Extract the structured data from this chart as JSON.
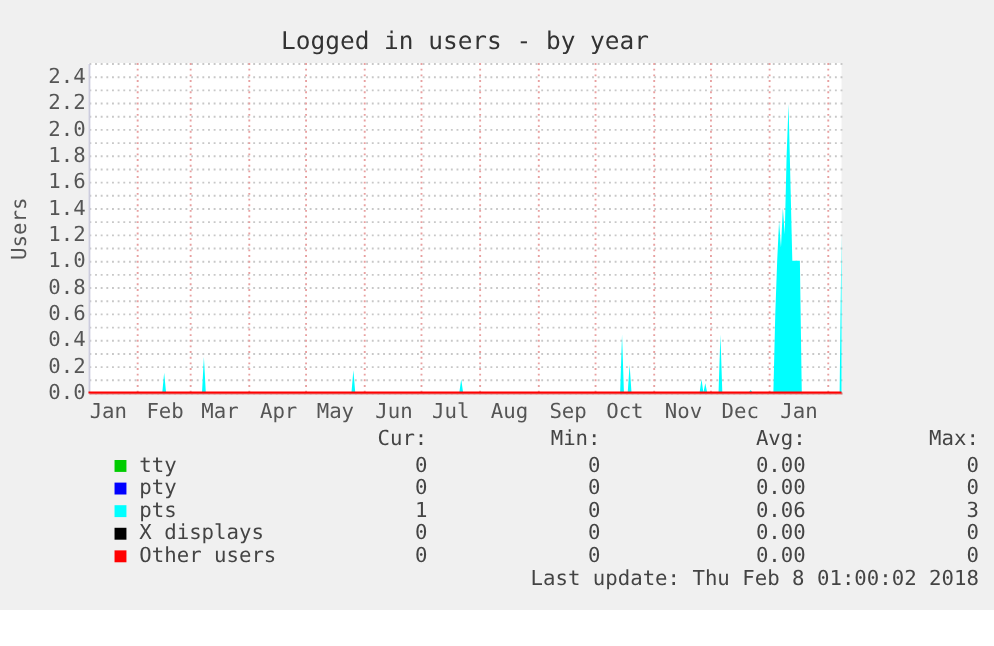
{
  "chart_data": {
    "type": "area",
    "title": "Logged in users - by year",
    "ylabel": "Users",
    "xlim": [
      "2017-01-06",
      "2018-02-08"
    ],
    "ylim": [
      0,
      2.5
    ],
    "xticks": [
      {
        "value": "2017-01-16",
        "label": "Jan"
      },
      {
        "value": "2017-02-15",
        "label": "Feb"
      },
      {
        "value": "2017-03-16",
        "label": "Mar"
      },
      {
        "value": "2017-04-16",
        "label": "Apr"
      },
      {
        "value": "2017-05-16",
        "label": "May"
      },
      {
        "value": "2017-06-16",
        "label": "Jun"
      },
      {
        "value": "2017-07-16",
        "label": "Jul"
      },
      {
        "value": "2017-08-16",
        "label": "Aug"
      },
      {
        "value": "2017-09-16",
        "label": "Sep"
      },
      {
        "value": "2017-10-16",
        "label": "Oct"
      },
      {
        "value": "2017-11-16",
        "label": "Nov"
      },
      {
        "value": "2017-12-16",
        "label": "Dec"
      },
      {
        "value": "2018-01-16",
        "label": "Jan"
      }
    ],
    "yticks": [
      {
        "value": 0,
        "label": "0.0"
      },
      {
        "value": 0.1,
        "label": null
      },
      {
        "value": 0.2,
        "label": "0.2"
      },
      {
        "value": 0.3,
        "label": null
      },
      {
        "value": 0.4,
        "label": "0.4"
      },
      {
        "value": 0.5,
        "label": null
      },
      {
        "value": 0.6,
        "label": "0.6"
      },
      {
        "value": 0.7,
        "label": null
      },
      {
        "value": 0.8,
        "label": "0.8"
      },
      {
        "value": 0.9,
        "label": null
      },
      {
        "value": 1.0,
        "label": "1.0"
      },
      {
        "value": 1.1,
        "label": null
      },
      {
        "value": 1.2,
        "label": "1.2"
      },
      {
        "value": 1.3,
        "label": null
      },
      {
        "value": 1.4,
        "label": "1.4"
      },
      {
        "value": 1.5,
        "label": null
      },
      {
        "value": 1.6,
        "label": "1.6"
      },
      {
        "value": 1.7,
        "label": null
      },
      {
        "value": 1.8,
        "label": "1.8"
      },
      {
        "value": 1.9,
        "label": null
      },
      {
        "value": 2.0,
        "label": "2.0"
      },
      {
        "value": 2.1,
        "label": null
      },
      {
        "value": 2.2,
        "label": "2.2"
      },
      {
        "value": 2.3,
        "label": null
      },
      {
        "value": 2.4,
        "label": "2.4"
      },
      {
        "value": 2.5,
        "label": null
      }
    ],
    "grid": "y",
    "legend": "bottom",
    "ref_lines": [
      {
        "axis": "x",
        "value": "2017-02-01",
        "color": "#e8a0a0",
        "line_style": "dotted"
      },
      {
        "axis": "x",
        "value": "2017-03-01",
        "color": "#e8a0a0",
        "line_style": "dotted"
      },
      {
        "axis": "x",
        "value": "2017-04-01",
        "color": "#e8a0a0",
        "line_style": "dotted"
      },
      {
        "axis": "x",
        "value": "2017-05-01",
        "color": "#e8a0a0",
        "line_style": "dotted"
      },
      {
        "axis": "x",
        "value": "2017-06-01",
        "color": "#e8a0a0",
        "line_style": "dotted"
      },
      {
        "axis": "x",
        "value": "2017-07-01",
        "color": "#e8a0a0",
        "line_style": "dotted"
      },
      {
        "axis": "x",
        "value": "2017-08-01",
        "color": "#e8a0a0",
        "line_style": "dotted"
      },
      {
        "axis": "x",
        "value": "2017-09-01",
        "color": "#e8a0a0",
        "line_style": "dotted"
      },
      {
        "axis": "x",
        "value": "2017-10-01",
        "color": "#e8a0a0",
        "line_style": "dotted"
      },
      {
        "axis": "x",
        "value": "2017-11-01",
        "color": "#e8a0a0",
        "line_style": "dotted"
      },
      {
        "axis": "x",
        "value": "2017-12-01",
        "color": "#e8a0a0",
        "line_style": "dotted"
      },
      {
        "axis": "x",
        "value": "2018-01-01",
        "color": "#e8a0a0",
        "line_style": "dotted"
      },
      {
        "axis": "x",
        "value": "2018-02-01",
        "color": "#e8a0a0",
        "line_style": "dotted"
      }
    ],
    "x": [
      "2017-01-06",
      "2017-02-14",
      "2017-02-15",
      "2017-02-16",
      "2017-03-07",
      "2017-03-08",
      "2017-03-09",
      "2017-05-25",
      "2017-05-26",
      "2017-05-27",
      "2017-07-21",
      "2017-07-22",
      "2017-07-23",
      "2017-10-14",
      "2017-10-15",
      "2017-10-16",
      "2017-10-18",
      "2017-10-19",
      "2017-10-20",
      "2017-11-25",
      "2017-11-26",
      "2017-11-27",
      "2017-11-28",
      "2017-11-29",
      "2017-12-05",
      "2017-12-06",
      "2017-12-07",
      "2017-12-21",
      "2017-12-22",
      "2017-12-23",
      "2018-01-03",
      "2018-01-04",
      "2018-01-05",
      "2018-01-06",
      "2018-01-07",
      "2018-01-08",
      "2018-01-09",
      "2018-01-10",
      "2018-01-11",
      "2018-01-12",
      "2018-01-13",
      "2018-01-14",
      "2018-01-15",
      "2018-01-16",
      "2018-01-17",
      "2018-01-18",
      "2018-02-06",
      "2018-02-07",
      "2018-02-08"
    ],
    "series": [
      {
        "name": "tty",
        "color": "#00cc00",
        "type": "line",
        "values": [
          null,
          null,
          null,
          null,
          null,
          null,
          null,
          null,
          null,
          null,
          null,
          null,
          null,
          null,
          null,
          null,
          null,
          null,
          null,
          null,
          null,
          null,
          null,
          null,
          null,
          null,
          null,
          null,
          null,
          null,
          null,
          null,
          null,
          null,
          null,
          null,
          null,
          null,
          null,
          null,
          null,
          null,
          null,
          null,
          null,
          null,
          null,
          null,
          null
        ]
      },
      {
        "name": "pty",
        "color": "#0000ff",
        "type": "line",
        "values": [
          null,
          null,
          null,
          null,
          null,
          null,
          null,
          null,
          null,
          null,
          null,
          null,
          null,
          null,
          null,
          null,
          null,
          null,
          null,
          null,
          null,
          null,
          null,
          null,
          null,
          null,
          null,
          null,
          null,
          null,
          null,
          null,
          null,
          null,
          null,
          null,
          null,
          null,
          null,
          null,
          null,
          null,
          null,
          null,
          null,
          null,
          null,
          null,
          null
        ]
      },
      {
        "name": "pts",
        "color": "#00ffff",
        "values": [
          0,
          0,
          0.15,
          0,
          0,
          0.27,
          0,
          0,
          0.17,
          0,
          0,
          0.1,
          0,
          0,
          0.44,
          0,
          0,
          0.21,
          0,
          0,
          0.1,
          0,
          0.07,
          0,
          0,
          0.44,
          0,
          0,
          0.02,
          0,
          0,
          0.6,
          1.0,
          1.3,
          1.1,
          1.4,
          1.2,
          1.8,
          2.19,
          1.6,
          1.0,
          1.0,
          1.0,
          1.0,
          1.0,
          0,
          0,
          0,
          1.2
        ]
      },
      {
        "name": "X displays",
        "color": "#000000",
        "type": "line",
        "values": [
          null,
          null,
          null,
          null,
          null,
          null,
          null,
          null,
          null,
          null,
          null,
          null,
          null,
          null,
          null,
          null,
          null,
          null,
          null,
          null,
          null,
          null,
          null,
          null,
          null,
          null,
          null,
          null,
          null,
          null,
          null,
          null,
          null,
          null,
          null,
          null,
          null,
          null,
          null,
          null,
          null,
          null,
          null,
          null,
          null,
          null,
          null,
          null,
          null
        ]
      },
      {
        "name": "Other users",
        "color": "#ff0000",
        "type": "line",
        "x": [
          "2017-01-06",
          "2018-02-08"
        ],
        "values": [
          0,
          0
        ]
      }
    ],
    "annotations": [
      "Cur:",
      "Min:",
      "Avg:",
      "Max:",
      "0",
      "0",
      "0.00",
      "0",
      "0",
      "0",
      "0.00",
      "0",
      "1",
      "0",
      "0.06",
      "3",
      "0",
      "0",
      "0.00",
      "0",
      "0",
      "0",
      "0.00",
      "0",
      "Last update: Thu Feb  8 01:00:02 2018"
    ]
  }
}
